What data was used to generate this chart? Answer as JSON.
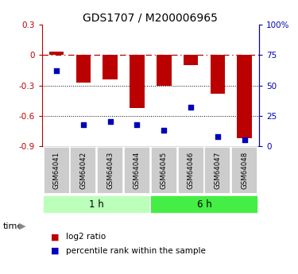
{
  "title": "GDS1707 / M200006965",
  "samples": [
    "GSM64041",
    "GSM64042",
    "GSM64043",
    "GSM64044",
    "GSM64045",
    "GSM64046",
    "GSM64047",
    "GSM64048"
  ],
  "log2_ratio": [
    0.03,
    -0.27,
    -0.24,
    -0.52,
    -0.3,
    -0.1,
    -0.38,
    -0.82
  ],
  "percentile_rank": [
    62,
    18,
    20,
    18,
    13,
    32,
    8,
    5
  ],
  "time_groups": [
    {
      "label": "1 h",
      "start": 0,
      "end": 4,
      "color": "#bbffbb"
    },
    {
      "label": "6 h",
      "start": 4,
      "end": 8,
      "color": "#44ee44"
    }
  ],
  "ylim_left": [
    -0.9,
    0.3
  ],
  "ylim_right": [
    0,
    100
  ],
  "yticks_left": [
    0.3,
    0.0,
    -0.3,
    -0.6,
    -0.9
  ],
  "ytick_labels_left": [
    "0.3",
    "0",
    "-0.3",
    "-0.6",
    "-0.9"
  ],
  "yticks_right": [
    100,
    75,
    50,
    25,
    0
  ],
  "ytick_labels_right": [
    "100%",
    "75",
    "50",
    "25",
    "0"
  ],
  "hlines_dashdot": [
    0.0
  ],
  "hlines_dotted": [
    -0.3,
    -0.6
  ],
  "bar_color": "#bb0000",
  "scatter_color": "#0000bb",
  "bar_width": 0.55,
  "sample_box_color": "#cccccc",
  "legend_entries": [
    "log2 ratio",
    "percentile rank within the sample"
  ]
}
